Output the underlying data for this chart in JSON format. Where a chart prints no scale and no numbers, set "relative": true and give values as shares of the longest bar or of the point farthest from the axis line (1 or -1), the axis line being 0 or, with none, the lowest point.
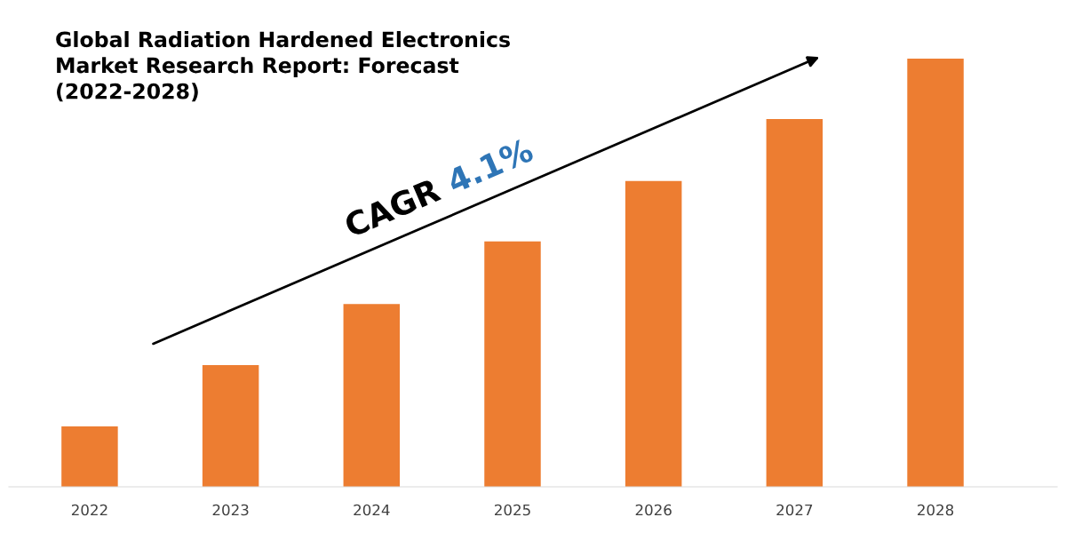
{
  "chart_data": {
    "type": "bar",
    "title": "Global Radiation Hardened Electronics\nMarket Research Report: Forecast\n(2022-2028)",
    "categories": [
      "2022",
      "2023",
      "2024",
      "2025",
      "2026",
      "2027",
      "2028"
    ],
    "values": [
      0.141,
      0.284,
      0.427,
      0.573,
      0.714,
      0.859,
      1
    ],
    "color": "#ed7d31",
    "relative": true,
    "grid": false,
    "legend": false,
    "annotations": [
      "CAGR",
      "4.1%"
    ]
  }
}
